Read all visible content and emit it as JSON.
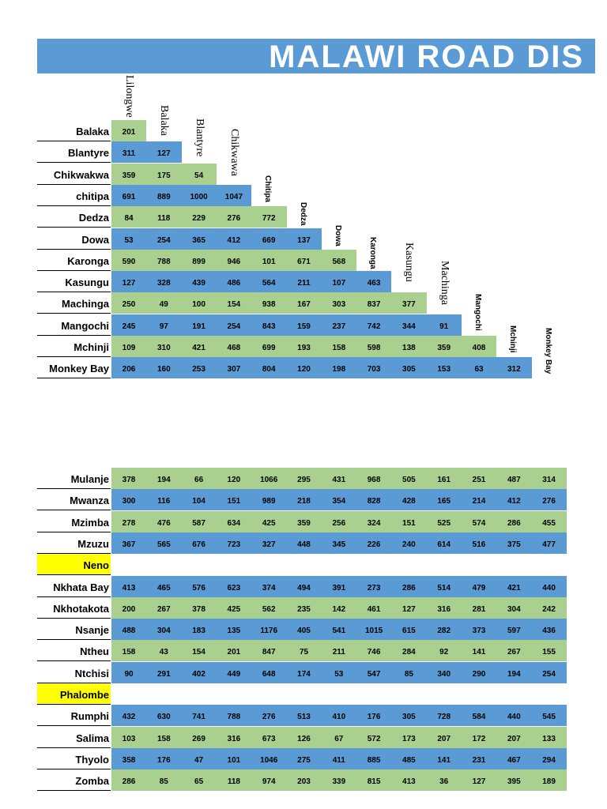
{
  "title": "MALAWI ROAD DIS",
  "colors": {
    "green": "#a9d08e",
    "blue": "#5b9bd5",
    "highlight": "#ffff00",
    "title_bg": "#5b9bd5"
  },
  "column_headers": [
    "Lilongwe",
    "Balaka",
    "Blantyre",
    "Chikwawa",
    "Chitipa",
    "Dedza",
    "Dowa",
    "Karonga",
    "Kasungu",
    "Machinga",
    "Mangochi",
    "Mchinji",
    "Monkey Bay"
  ],
  "top_table": [
    {
      "town": "Balaka",
      "values": [
        "201"
      ]
    },
    {
      "town": "Blantyre",
      "values": [
        "311",
        "127"
      ]
    },
    {
      "town": "Chikwakwa",
      "values": [
        "359",
        "175",
        "54"
      ]
    },
    {
      "town": "chitipa",
      "values": [
        "691",
        "889",
        "1000",
        "1047"
      ]
    },
    {
      "town": "Dedza",
      "values": [
        "84",
        "118",
        "229",
        "276",
        "772"
      ]
    },
    {
      "town": "Dowa",
      "values": [
        "53",
        "254",
        "365",
        "412",
        "669",
        "137"
      ]
    },
    {
      "town": "Karonga",
      "values": [
        "590",
        "788",
        "899",
        "946",
        "101",
        "671",
        "568"
      ]
    },
    {
      "town": "Kasungu",
      "values": [
        "127",
        "328",
        "439",
        "486",
        "564",
        "211",
        "107",
        "463"
      ]
    },
    {
      "town": "Machinga",
      "values": [
        "250",
        "49",
        "100",
        "154",
        "938",
        "167",
        "303",
        "837",
        "377"
      ]
    },
    {
      "town": "Mangochi",
      "values": [
        "245",
        "97",
        "191",
        "254",
        "843",
        "159",
        "237",
        "742",
        "344",
        "91"
      ]
    },
    {
      "town": "Mchinji",
      "values": [
        "109",
        "310",
        "421",
        "468",
        "699",
        "193",
        "158",
        "598",
        "138",
        "359",
        "408"
      ]
    },
    {
      "town": "Monkey Bay",
      "values": [
        "206",
        "160",
        "253",
        "307",
        "804",
        "120",
        "198",
        "703",
        "305",
        "153",
        "63",
        "312"
      ]
    }
  ],
  "bottom_table": [
    {
      "town": "Mulanje",
      "values": [
        "378",
        "194",
        "66",
        "120",
        "1066",
        "295",
        "431",
        "968",
        "505",
        "161",
        "251",
        "487",
        "314"
      ]
    },
    {
      "town": "Mwanza",
      "values": [
        "300",
        "116",
        "104",
        "151",
        "989",
        "218",
        "354",
        "828",
        "428",
        "165",
        "214",
        "412",
        "276"
      ]
    },
    {
      "town": "Mzimba",
      "values": [
        "278",
        "476",
        "587",
        "634",
        "425",
        "359",
        "256",
        "324",
        "151",
        "525",
        "574",
        "286",
        "455"
      ]
    },
    {
      "town": "Mzuzu",
      "values": [
        "367",
        "565",
        "676",
        "723",
        "327",
        "448",
        "345",
        "226",
        "240",
        "614",
        "516",
        "375",
        "477"
      ]
    },
    {
      "town": "Neno",
      "values": [],
      "highlight": true
    },
    {
      "town": "Nkhata Bay",
      "values": [
        "413",
        "465",
        "576",
        "623",
        "374",
        "494",
        "391",
        "273",
        "286",
        "514",
        "479",
        "421",
        "440"
      ]
    },
    {
      "town": "Nkhotakota",
      "values": [
        "200",
        "267",
        "378",
        "425",
        "562",
        "235",
        "142",
        "461",
        "127",
        "316",
        "281",
        "304",
        "242"
      ]
    },
    {
      "town": "Nsanje",
      "values": [
        "488",
        "304",
        "183",
        "135",
        "1176",
        "405",
        "541",
        "1015",
        "615",
        "282",
        "373",
        "597",
        "436"
      ]
    },
    {
      "town": "Ntheu",
      "values": [
        "158",
        "43",
        "154",
        "201",
        "847",
        "75",
        "211",
        "746",
        "284",
        "92",
        "141",
        "267",
        "155"
      ]
    },
    {
      "town": "Ntchisi",
      "values": [
        "90",
        "291",
        "402",
        "449",
        "648",
        "174",
        "53",
        "547",
        "85",
        "340",
        "290",
        "194",
        "254"
      ]
    },
    {
      "town": "Phalombe",
      "values": [],
      "highlight": true
    },
    {
      "town": "Rumphi",
      "values": [
        "432",
        "630",
        "741",
        "788",
        "276",
        "513",
        "410",
        "176",
        "305",
        "728",
        "584",
        "440",
        "545"
      ]
    },
    {
      "town": "Salima",
      "values": [
        "103",
        "158",
        "269",
        "316",
        "673",
        "126",
        "67",
        "572",
        "173",
        "207",
        "172",
        "207",
        "133"
      ]
    },
    {
      "town": "Thyolo",
      "values": [
        "358",
        "176",
        "47",
        "101",
        "1046",
        "275",
        "411",
        "885",
        "485",
        "141",
        "231",
        "467",
        "294"
      ]
    },
    {
      "town": "Zomba",
      "values": [
        "286",
        "85",
        "65",
        "118",
        "974",
        "203",
        "339",
        "815",
        "413",
        "36",
        "127",
        "395",
        "189"
      ]
    }
  ]
}
